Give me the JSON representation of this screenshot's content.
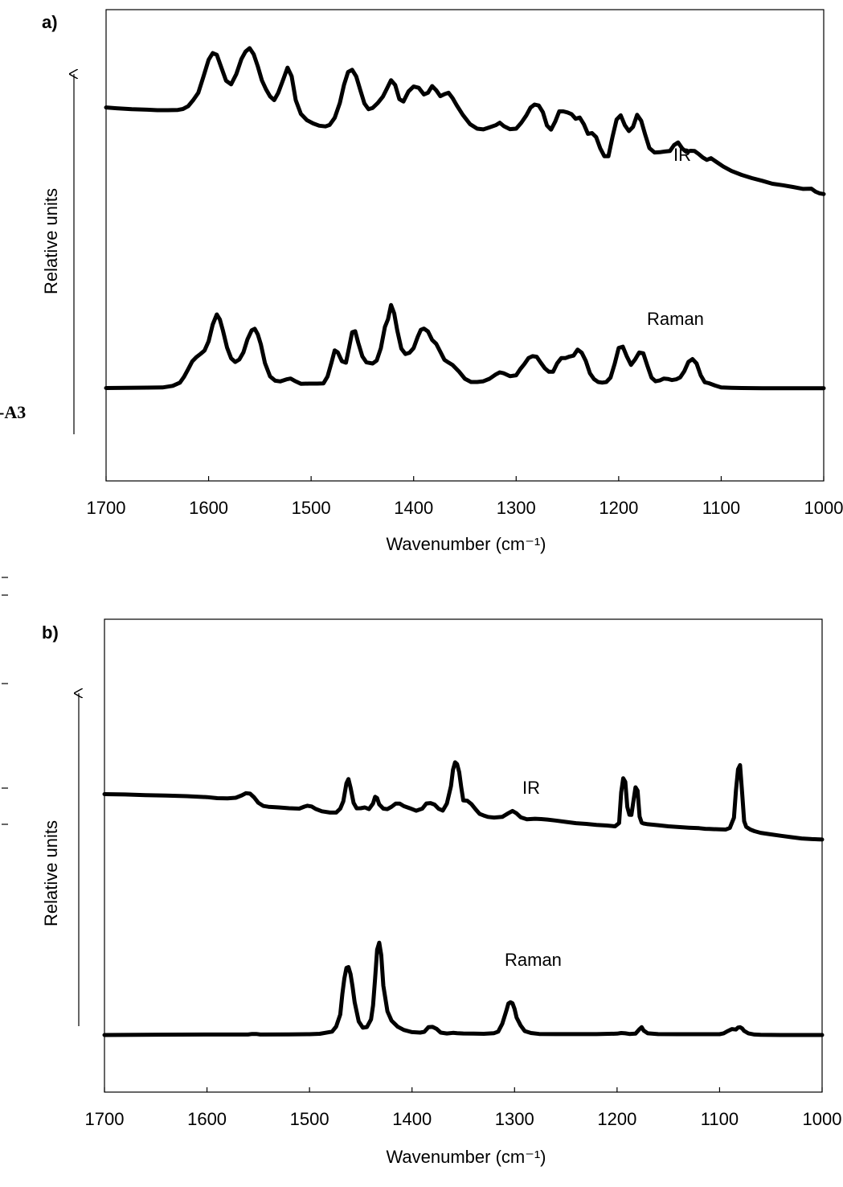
{
  "side_label": "-A3",
  "chart_data": [
    {
      "type": "line",
      "panel": "a)",
      "xlabel": "Wavenumber (cm⁻¹)",
      "ylabel": "Relative units",
      "xlim": [
        1700,
        1000
      ],
      "x_reversed": true,
      "ticks": [
        "1700",
        "1600",
        "1500",
        "1400",
        "1300",
        "1200",
        "1100",
        "1000"
      ],
      "tick_values": [
        1700,
        1600,
        1500,
        1400,
        1300,
        1200,
        1100,
        1000
      ],
      "ylim": [
        0,
        100
      ],
      "series": [
        {
          "name": "IR",
          "x": [
            1700,
            1690,
            1675,
            1660,
            1650,
            1640,
            1630,
            1625,
            1620,
            1615,
            1610,
            1605,
            1600,
            1596,
            1592,
            1588,
            1583,
            1578,
            1573,
            1568,
            1564,
            1560,
            1556,
            1552,
            1548,
            1544,
            1540,
            1536,
            1532,
            1527,
            1523,
            1519,
            1515,
            1510,
            1504,
            1498,
            1492,
            1486,
            1482,
            1477,
            1472,
            1468,
            1464,
            1460,
            1456,
            1452,
            1448,
            1444,
            1440,
            1435,
            1430,
            1426,
            1422,
            1418,
            1414,
            1410,
            1405,
            1400,
            1395,
            1390,
            1386,
            1382,
            1378,
            1374,
            1370,
            1366,
            1362,
            1358,
            1352,
            1345,
            1338,
            1332,
            1326,
            1320,
            1316,
            1312,
            1306,
            1300,
            1295,
            1290,
            1286,
            1282,
            1278,
            1274,
            1270,
            1266,
            1262,
            1258,
            1254,
            1250,
            1246,
            1242,
            1238,
            1234,
            1230,
            1226,
            1222,
            1218,
            1214,
            1210,
            1206,
            1202,
            1198,
            1194,
            1190,
            1186,
            1182,
            1178,
            1174,
            1170,
            1165,
            1160,
            1155,
            1150,
            1146,
            1142,
            1138,
            1134,
            1130,
            1126,
            1122,
            1118,
            1114,
            1110,
            1105,
            1098,
            1090,
            1080,
            1070,
            1060,
            1050,
            1040,
            1030,
            1020,
            1012,
            1008,
            1004,
            1000
          ],
          "y": [
            69.4,
            69.1,
            68.7,
            68.5,
            68.3,
            68.3,
            68.4,
            68.8,
            69.9,
            72.4,
            75.4,
            82,
            88.8,
            91.5,
            90.8,
            86.1,
            80.3,
            78.8,
            82.9,
            89.1,
            92.1,
            93.5,
            91,
            86.1,
            80.4,
            76.8,
            73.9,
            72.4,
            75.4,
            81,
            85.6,
            82.1,
            72.4,
            66.8,
            64.2,
            62.9,
            62,
            61.7,
            62.3,
            65.2,
            71.2,
            78.5,
            83.8,
            84.7,
            82,
            76.4,
            71,
            68.7,
            69.2,
            71.2,
            73.8,
            77.1,
            80.5,
            78.5,
            72.8,
            71.8,
            75.9,
            77.9,
            77.4,
            74.7,
            75.4,
            78.1,
            76.4,
            74,
            74.8,
            75.4,
            73.2,
            70.3,
            66.4,
            62.6,
            60.8,
            60.5,
            61.3,
            62.2,
            63.2,
            61.8,
            60.6,
            60.8,
            63.2,
            66.2,
            69.3,
            70.6,
            70.2,
            67.5,
            62.1,
            60.4,
            63.6,
            67.8,
            67.8,
            67.4,
            66.7,
            64.8,
            65.3,
            62.6,
            58.7,
            59,
            57.4,
            52.8,
            49.6,
            49.6,
            57.5,
            64.5,
            66.2,
            62.2,
            59.8,
            61.5,
            66.4,
            64,
            58.2,
            52.9,
            51.1,
            51.2,
            51.5,
            51.7,
            54.1,
            55.2,
            52.7,
            51.3,
            51.8,
            51.7,
            50.5,
            49.1,
            48.1,
            48.8,
            47.4,
            45.4,
            43.6,
            42,
            40.7,
            39.6,
            38.4,
            37.8,
            37.1,
            36.3,
            36.4,
            35.2,
            34.5,
            34.2
          ]
        },
        {
          "name": "Raman",
          "x": [
            1700,
            1680,
            1660,
            1645,
            1635,
            1628,
            1624,
            1620,
            1616,
            1612,
            1608,
            1604,
            1600,
            1596,
            1592,
            1589,
            1586,
            1582,
            1578,
            1574,
            1570,
            1566,
            1562,
            1558,
            1555,
            1552,
            1549,
            1545,
            1540,
            1535,
            1530,
            1524,
            1520,
            1516,
            1510,
            1502,
            1494,
            1488,
            1484,
            1480,
            1477,
            1474,
            1470,
            1466,
            1463,
            1460,
            1457,
            1454,
            1450,
            1446,
            1440,
            1436,
            1432,
            1428,
            1425,
            1422,
            1419,
            1416,
            1412,
            1408,
            1404,
            1400,
            1396,
            1393,
            1390,
            1386,
            1382,
            1378,
            1374,
            1370,
            1366,
            1362,
            1356,
            1350,
            1344,
            1338,
            1332,
            1326,
            1320,
            1316,
            1312,
            1306,
            1300,
            1296,
            1292,
            1288,
            1284,
            1280,
            1276,
            1272,
            1268,
            1264,
            1260,
            1256,
            1252,
            1248,
            1244,
            1240,
            1236,
            1232,
            1228,
            1224,
            1220,
            1216,
            1212,
            1208,
            1204,
            1200,
            1196,
            1192,
            1188,
            1184,
            1180,
            1176,
            1172,
            1168,
            1164,
            1160,
            1156,
            1152,
            1148,
            1144,
            1140,
            1136,
            1132,
            1128,
            1124,
            1120,
            1116,
            1112,
            1106,
            1100,
            1090,
            1080,
            1060,
            1040,
            1020,
            1000
          ],
          "y": [
            14.8,
            14.9,
            15,
            15.1,
            15.9,
            17.6,
            20.6,
            24.5,
            28.6,
            30.8,
            32.4,
            34.2,
            39,
            47.7,
            52.9,
            50.3,
            44.6,
            35.8,
            30.2,
            28.3,
            29.6,
            33.3,
            40.1,
            44.7,
            45.5,
            42.6,
            37.4,
            27.7,
            20.8,
            18.6,
            18.2,
            19.3,
            19.7,
            18.5,
            17,
            17.1,
            17.1,
            17.2,
            20.8,
            28.3,
            34.3,
            33.3,
            28.7,
            27.9,
            35.6,
            43.7,
            44.2,
            38.2,
            31.2,
            28.1,
            27.5,
            29.1,
            35.4,
            46.5,
            50.4,
            57.8,
            53.5,
            44.7,
            35.2,
            32.4,
            33.1,
            35.5,
            41.3,
            44.9,
            45.6,
            44.1,
            39.7,
            37.7,
            33.6,
            29.4,
            28,
            26.7,
            23.5,
            19.6,
            17.9,
            17.9,
            18.3,
            19.6,
            21.8,
            22.9,
            22.4,
            20.9,
            21.4,
            24.6,
            27.2,
            30.3,
            31.3,
            31,
            27.9,
            25,
            23.2,
            23.2,
            27.6,
            30.3,
            30.3,
            31.1,
            31.6,
            34.7,
            33.1,
            28.8,
            22.4,
            19.4,
            17.9,
            17.6,
            17.9,
            20.2,
            27.2,
            35.6,
            36.2,
            31.1,
            26.8,
            29.6,
            33.2,
            32.8,
            26.3,
            20.2,
            18.3,
            18.7,
            19.7,
            19.5,
            18.9,
            19.3,
            20.3,
            23.5,
            28.3,
            29.8,
            27.5,
            21.4,
            17.8,
            17.3,
            16.1,
            15.1,
            14.9,
            14.8,
            14.7,
            14.7,
            14.7,
            14.7
          ]
        }
      ]
    },
    {
      "type": "line",
      "panel": "b)",
      "xlabel": "Wavenumber (cm⁻¹)",
      "ylabel": "Relative units",
      "xlim": [
        1700,
        1000
      ],
      "x_reversed": true,
      "ticks": [
        "1700",
        "1600",
        "1500",
        "1400",
        "1300",
        "1200",
        "1100",
        "1000"
      ],
      "tick_values": [
        1700,
        1600,
        1500,
        1400,
        1300,
        1200,
        1100,
        1000
      ],
      "ylim": [
        0,
        100
      ],
      "series": [
        {
          "name": "IR",
          "x": [
            1700,
            1680,
            1660,
            1640,
            1620,
            1600,
            1590,
            1580,
            1572,
            1566,
            1562,
            1558,
            1554,
            1550,
            1545,
            1540,
            1530,
            1520,
            1510,
            1505,
            1502,
            1498,
            1494,
            1488,
            1480,
            1474,
            1470,
            1467,
            1464,
            1462,
            1460,
            1457,
            1454,
            1450,
            1446,
            1442,
            1438,
            1436,
            1434,
            1432,
            1428,
            1424,
            1420,
            1416,
            1412,
            1408,
            1402,
            1396,
            1390,
            1386,
            1382,
            1378,
            1374,
            1370,
            1366,
            1362,
            1360,
            1358,
            1356,
            1354,
            1352,
            1350,
            1346,
            1342,
            1338,
            1334,
            1330,
            1326,
            1320,
            1312,
            1306,
            1302,
            1298,
            1294,
            1288,
            1280,
            1274,
            1268,
            1260,
            1250,
            1240,
            1230,
            1220,
            1210,
            1202,
            1198,
            1196,
            1194,
            1192,
            1190,
            1188,
            1186,
            1184,
            1182,
            1180,
            1178,
            1176,
            1174,
            1170,
            1160,
            1150,
            1140,
            1130,
            1120,
            1114,
            1110,
            1100,
            1094,
            1090,
            1086,
            1084,
            1082,
            1080,
            1078,
            1076,
            1074,
            1070,
            1066,
            1060,
            1050,
            1040,
            1030,
            1020,
            1010,
            1000
          ],
          "y": [
            54.9,
            54.7,
            54.3,
            54,
            53.6,
            53,
            52.3,
            52.2,
            52.6,
            54.1,
            55.5,
            55.2,
            52.8,
            49.4,
            47.3,
            46.8,
            46.4,
            45.9,
            45.6,
            46.9,
            47.5,
            47,
            45.4,
            43.9,
            43.1,
            43.1,
            45.6,
            50.3,
            61.9,
            64.6,
            59.1,
            49.3,
            45.8,
            45.9,
            46.4,
            45.3,
            48.9,
            53.2,
            52.3,
            48.3,
            45.6,
            45.3,
            46.8,
            48.8,
            48.8,
            47.2,
            45.8,
            44.3,
            45.6,
            48.9,
            49.2,
            48.2,
            45.5,
            44.4,
            48.9,
            60.1,
            70.5,
            75.3,
            74.1,
            69,
            59.5,
            50.9,
            50.6,
            48.5,
            45.2,
            42.2,
            41.2,
            40.3,
            39.9,
            40.3,
            42.7,
            44.1,
            42.6,
            40.1,
            38.8,
            39.1,
            38.9,
            38.6,
            38,
            37.1,
            36.3,
            35.8,
            35.2,
            34.8,
            34.3,
            36.4,
            56.1,
            65.1,
            62.8,
            46.7,
            41.7,
            41.6,
            50.7,
            59.3,
            57.1,
            40.5,
            36.6,
            36.1,
            35.6,
            35,
            34.3,
            33.8,
            33.4,
            33.1,
            32.7,
            32.6,
            32.3,
            32.2,
            33.3,
            39.8,
            57.3,
            70.8,
            73.5,
            55.6,
            37.6,
            33.9,
            32.2,
            31.2,
            30.1,
            29.1,
            28.2,
            27.3,
            26.5,
            26.1,
            25.8
          ]
        },
        {
          "name": "Raman",
          "x": [
            1700,
            1650,
            1600,
            1560,
            1556,
            1552,
            1548,
            1520,
            1500,
            1490,
            1478,
            1474,
            1470,
            1468,
            1466,
            1464,
            1462,
            1460,
            1458,
            1456,
            1452,
            1448,
            1444,
            1440,
            1438,
            1436,
            1434,
            1432,
            1430,
            1428,
            1424,
            1420,
            1414,
            1408,
            1400,
            1392,
            1388,
            1384,
            1380,
            1376,
            1372,
            1366,
            1360,
            1356,
            1350,
            1340,
            1330,
            1320,
            1316,
            1312,
            1308,
            1306,
            1304,
            1302,
            1300,
            1298,
            1294,
            1290,
            1284,
            1276,
            1260,
            1240,
            1220,
            1200,
            1196,
            1192,
            1188,
            1182,
            1178,
            1176,
            1174,
            1170,
            1160,
            1140,
            1120,
            1100,
            1096,
            1092,
            1088,
            1084,
            1082,
            1080,
            1078,
            1076,
            1072,
            1066,
            1060,
            1040,
            1020,
            1000
          ],
          "y": [
            0,
            0.2,
            0.3,
            0.3,
            0.7,
            0.7,
            0.3,
            0.4,
            0.5,
            0.8,
            2.2,
            5.5,
            13.4,
            26.8,
            37,
            43.9,
            44.5,
            39.9,
            31.7,
            21.5,
            8.9,
            4.8,
            5.2,
            10.2,
            19.3,
            37.2,
            55.9,
            60.4,
            52.3,
            32.3,
            15.5,
            9.4,
            5.4,
            3.3,
            1.9,
            1.6,
            2.1,
            5.1,
            5.3,
            4,
            1.6,
            1,
            1.4,
            1.2,
            1,
            0.9,
            0.8,
            1.2,
            2.2,
            7.3,
            15.9,
            20.6,
            21.4,
            20.8,
            17.1,
            11.5,
            6.2,
            2.6,
            1.3,
            0.7,
            0.6,
            0.6,
            0.6,
            0.9,
            1.3,
            1.1,
            0.7,
            0.9,
            3.9,
            5.1,
            2.9,
            1.1,
            0.6,
            0.5,
            0.5,
            0.5,
            1.1,
            2.6,
            3.9,
            3.6,
            4.9,
            5.1,
            4.3,
            2.7,
            1.1,
            0.3,
            0.1,
            0,
            0,
            0
          ]
        }
      ]
    }
  ]
}
